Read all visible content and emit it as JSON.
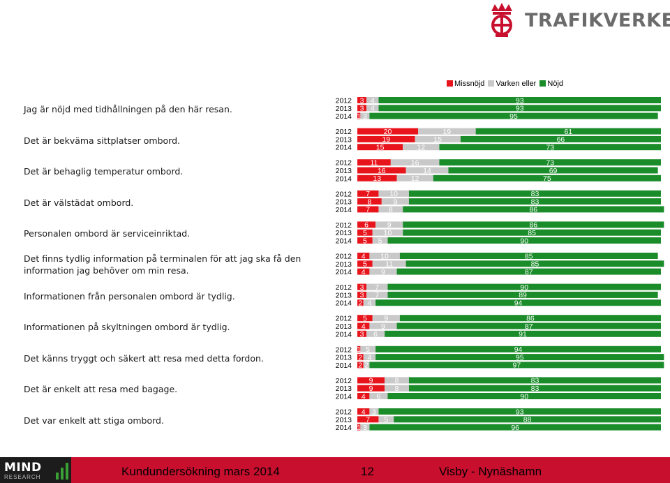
{
  "header": {
    "brand": "TRAFIKVERKET"
  },
  "colors": {
    "missnojd": "#e8141b",
    "varken": "#c9c9c9",
    "nojd": "#1a8c2a",
    "footer_bg": "#c8102e"
  },
  "chart_data": {
    "type": "bar",
    "orientation": "horizontal",
    "stacked": true,
    "xlim": [
      0,
      100
    ],
    "legend": [
      "Missnöjd",
      "Varken eller",
      "Nöjd"
    ],
    "legend_position": "top-right",
    "years": [
      "2012",
      "2013",
      "2014"
    ],
    "questions": [
      {
        "label": "Jag är nöjd med tidhållningen på den här resan.",
        "rows": [
          [
            3,
            4,
            93
          ],
          [
            3,
            4,
            93
          ],
          [
            1,
            3,
            95
          ]
        ]
      },
      {
        "label": "Det är bekväma sittplatser ombord.",
        "rows": [
          [
            20,
            19,
            61
          ],
          [
            19,
            15,
            66
          ],
          [
            15,
            12,
            73
          ]
        ]
      },
      {
        "label": "Det är behaglig temperatur ombord.",
        "rows": [
          [
            11,
            16,
            73
          ],
          [
            16,
            14,
            69
          ],
          [
            13,
            12,
            75
          ]
        ]
      },
      {
        "label": "Det är välstädat ombord.",
        "rows": [
          [
            7,
            10,
            83
          ],
          [
            8,
            9,
            83
          ],
          [
            7,
            8,
            86
          ]
        ]
      },
      {
        "label": "Personalen ombord är serviceinriktad.",
        "rows": [
          [
            6,
            9,
            86
          ],
          [
            5,
            10,
            85
          ],
          [
            5,
            5,
            90
          ]
        ]
      },
      {
        "label": "Det finns tydlig information på terminalen för att jag ska få den information jag behöver om min resa.",
        "rows": [
          [
            4,
            10,
            85
          ],
          [
            5,
            11,
            85
          ],
          [
            4,
            9,
            87
          ]
        ]
      },
      {
        "label": "Informationen från personalen ombord är tydlig.",
        "rows": [
          [
            3,
            7,
            90
          ],
          [
            3,
            7,
            89
          ],
          [
            2,
            4,
            94
          ]
        ]
      },
      {
        "label": "Informationen på skyltningen ombord är tydlig.",
        "rows": [
          [
            5,
            9,
            86
          ],
          [
            4,
            9,
            87
          ],
          [
            3,
            6,
            91
          ]
        ]
      },
      {
        "label": "Det känns tryggt och säkert att resa med detta fordon.",
        "rows": [
          [
            1,
            5,
            94
          ],
          [
            2,
            4,
            95
          ],
          [
            2,
            2,
            97
          ]
        ]
      },
      {
        "label": "Det är enkelt att resa med bagage.",
        "rows": [
          [
            9,
            8,
            83
          ],
          [
            9,
            8,
            83
          ],
          [
            4,
            6,
            90
          ]
        ]
      },
      {
        "label": "Det var enkelt att stiga ombord.",
        "rows": [
          [
            4,
            3,
            93
          ],
          [
            7,
            5,
            88
          ],
          [
            1,
            3,
            96
          ]
        ]
      }
    ]
  },
  "footer": {
    "logo_main": "MIND",
    "logo_sub": "RESEARCH",
    "title": "Kundundersökning mars 2014",
    "page": "12",
    "route": "Visby - Nynäshamn"
  }
}
